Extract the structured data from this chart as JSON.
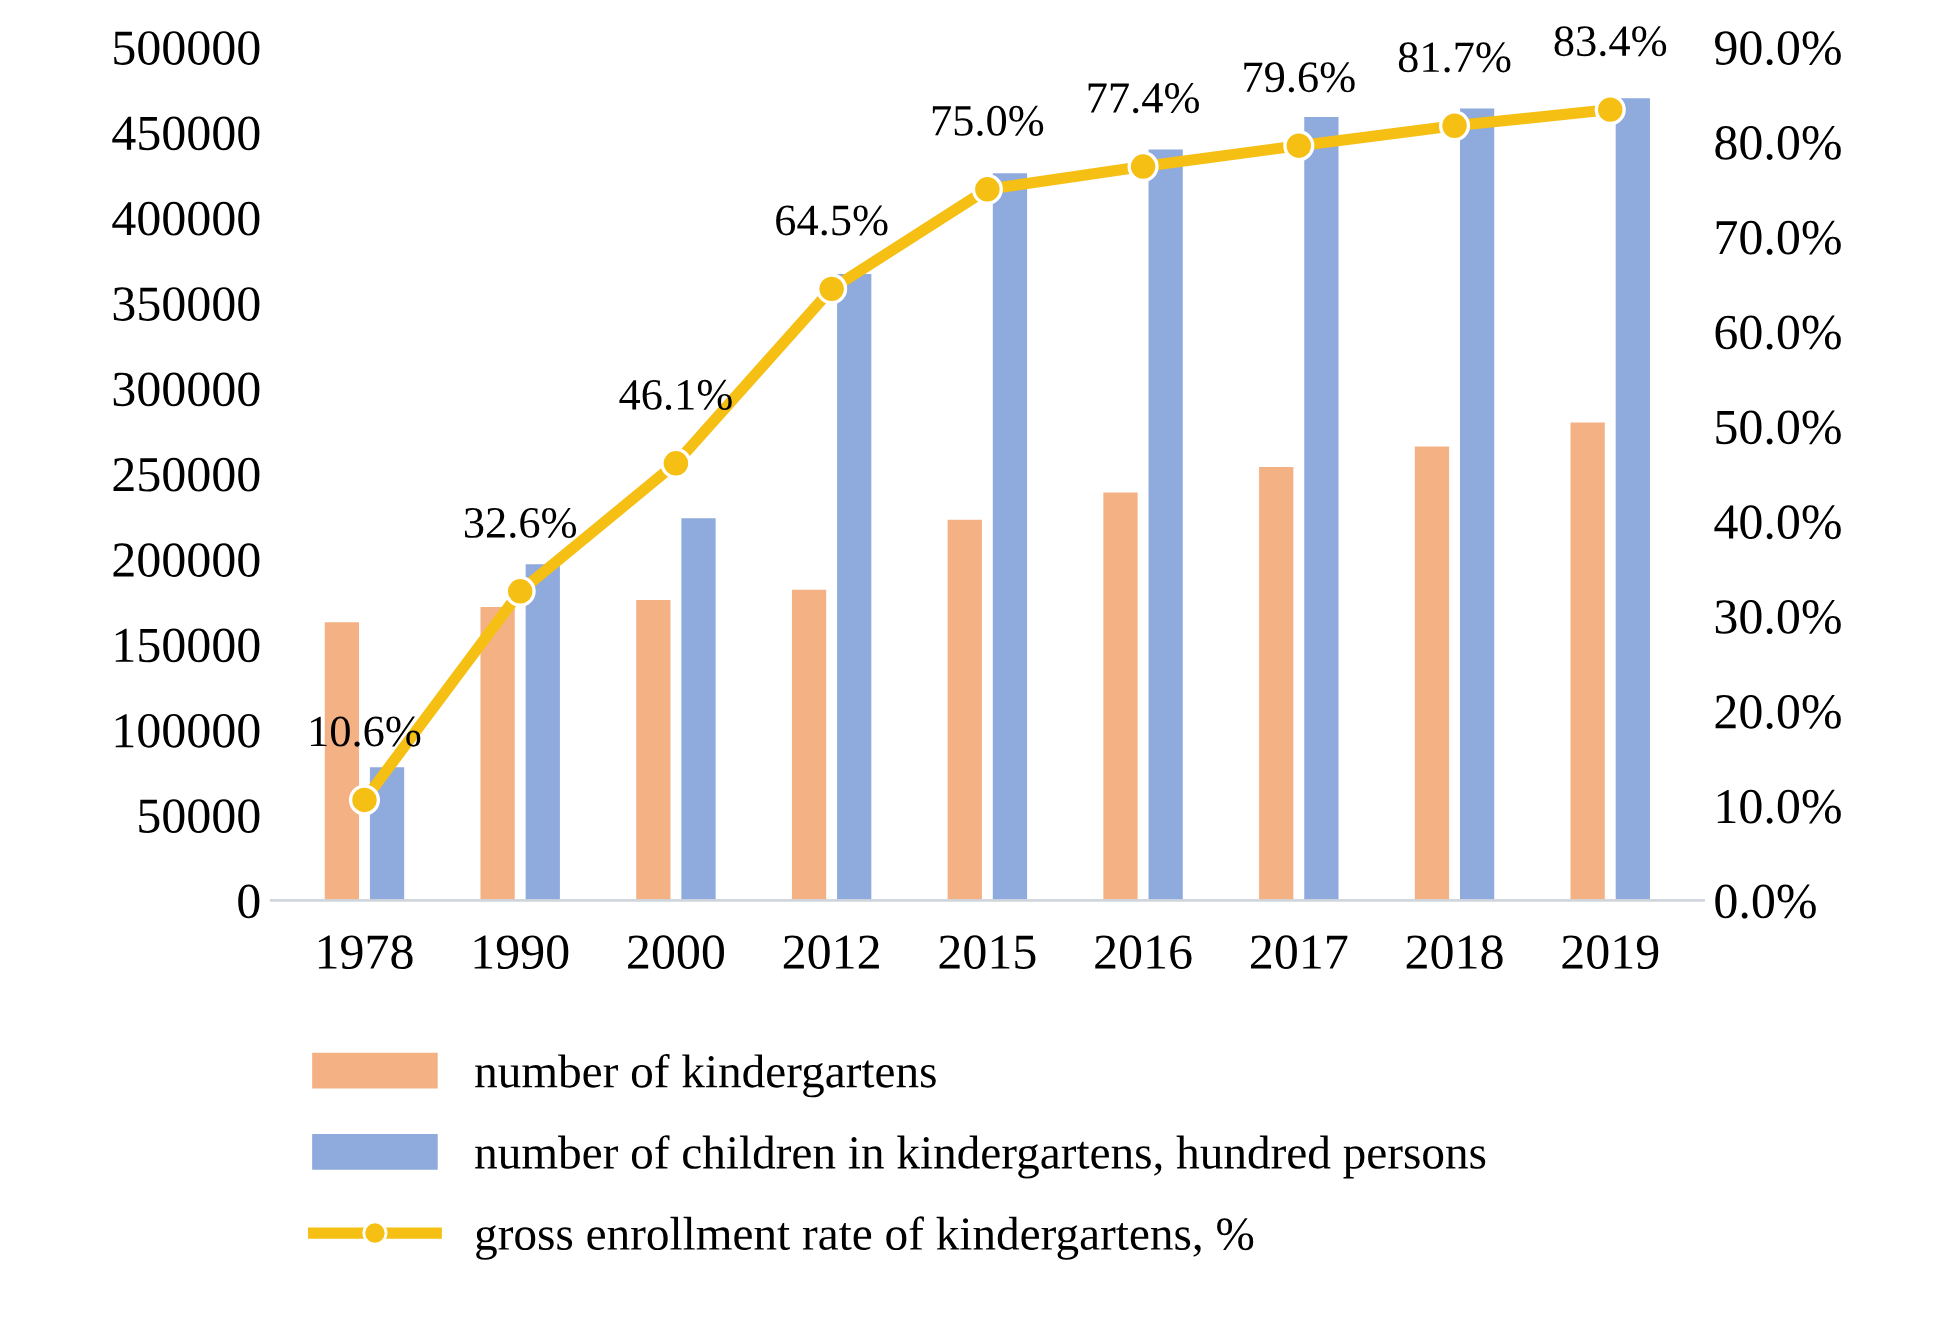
{
  "chart_data": {
    "type": "bar",
    "categories": [
      "1978",
      "1990",
      "2000",
      "2012",
      "2015",
      "2016",
      "2017",
      "2018",
      "2019"
    ],
    "series": [
      {
        "name": "number of kindergartens",
        "color": "#f4b183",
        "values": [
          163000,
          172000,
          176000,
          182000,
          223000,
          239000,
          254000,
          266000,
          280000
        ]
      },
      {
        "name": "number of children in kindergartens, hundred persons",
        "color": "#8faadc",
        "values": [
          78000,
          197000,
          224000,
          367000,
          426000,
          440000,
          459000,
          464000,
          470000
        ]
      },
      {
        "name": "gross enrollment rate of kindergartens, %",
        "type": "line",
        "axis": "y2",
        "color": "#f5bf14",
        "marker": "circle",
        "values": [
          10.6,
          32.6,
          46.1,
          64.5,
          75.0,
          77.4,
          79.6,
          81.7,
          83.4
        ],
        "value_labels": [
          "10.6%",
          "32.6%",
          "46.1%",
          "64.5%",
          "75.0%",
          "77.4%",
          "79.6%",
          "81.7%",
          "83.4%"
        ]
      }
    ],
    "ylim": [
      0,
      500000
    ],
    "yticks": [
      0,
      50000,
      100000,
      150000,
      200000,
      250000,
      300000,
      350000,
      400000,
      450000,
      500000
    ],
    "y2lim": [
      0,
      90
    ],
    "y2ticks": [
      {
        "value": 0,
        "label": "0.0%"
      },
      {
        "value": 10,
        "label": "10.0%"
      },
      {
        "value": 20,
        "label": "20.0%"
      },
      {
        "value": 30,
        "label": "30.0%"
      },
      {
        "value": 40,
        "label": "40.0%"
      },
      {
        "value": 50,
        "label": "50.0%"
      },
      {
        "value": 60,
        "label": "60.0%"
      },
      {
        "value": 70,
        "label": "70.0%"
      },
      {
        "value": 80,
        "label": "80.0%"
      },
      {
        "value": 90,
        "label": "90.0%"
      }
    ],
    "grid": false,
    "legend": "bottom"
  }
}
